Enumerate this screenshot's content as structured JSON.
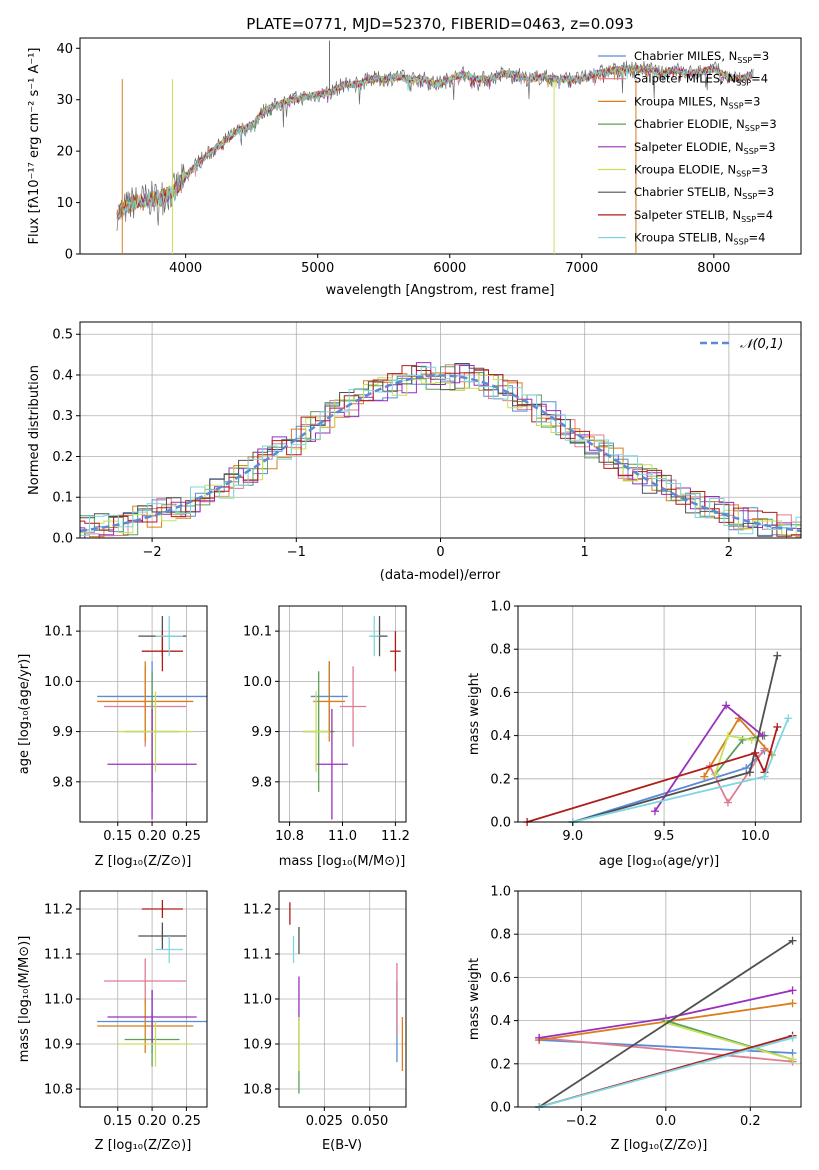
{
  "figure": {
    "title": "PLATE=0771, MJD=52370, FIBERID=0463, z=0.093"
  },
  "chart_data": [
    {
      "id": "spectrum",
      "type": "line",
      "xlabel": "wavelength [Angstrom, rest frame]",
      "ylabel": "Flux [fλ10⁻¹⁷ erg cm⁻² s⁻¹ A⁻¹]",
      "xlim": [
        3200,
        8660
      ],
      "ylim": [
        0,
        42
      ],
      "xticks": [
        4000,
        5000,
        6000,
        7000,
        8000
      ],
      "yticks": [
        0,
        10,
        20,
        30,
        40
      ],
      "legend_position": "top-right",
      "spectrum_envelope": {
        "x": [
          3500,
          3600,
          3700,
          3800,
          3900,
          4000,
          4100,
          4200,
          4300,
          4400,
          4500,
          4600,
          4700,
          4800,
          4900,
          5000,
          5100,
          5200,
          5300,
          5400,
          5500,
          5600,
          5700,
          5800,
          5900,
          6000,
          6100,
          6200,
          6300,
          6400,
          6500,
          6600,
          6700,
          6800,
          6900,
          7000,
          7100,
          7200,
          7300,
          7400,
          7500,
          7600,
          7700,
          7800,
          7900,
          8000,
          8100,
          8200,
          8300
        ],
        "y": [
          8,
          10,
          10.5,
          11,
          12,
          15,
          18,
          20,
          22,
          24,
          25,
          28,
          29,
          30,
          30.5,
          31,
          31.5,
          33,
          33,
          34,
          34,
          34.5,
          34,
          34,
          33,
          34,
          35,
          34,
          34,
          35,
          35,
          34,
          34.5,
          34,
          34,
          34,
          35,
          35.5,
          36,
          36,
          36,
          35,
          36,
          35,
          35.5,
          36,
          34.5,
          34,
          35
        ]
      },
      "series": [
        {
          "name": "Chabrier MILES, N_SSP=3",
          "color": "#5b8bd6"
        },
        {
          "name": "Salpeter MILES, N_SSP=4",
          "color": "#e07b91"
        },
        {
          "name": "Kroupa MILES, N_SSP=3",
          "color": "#d97e1a"
        },
        {
          "name": "Chabrier ELODIE, N_SSP=3",
          "color": "#5c9e5c"
        },
        {
          "name": "Salpeter ELODIE, N_SSP=3",
          "color": "#9a2fbd"
        },
        {
          "name": "Kroupa ELODIE, N_SSP=3",
          "color": "#c6e05a"
        },
        {
          "name": "Chabrier STELIB, N_SSP=3",
          "color": "#505050"
        },
        {
          "name": "Salpeter STELIB, N_SSP=4",
          "color": "#b01c1c"
        },
        {
          "name": "Kroupa STELIB, N_SSP=4",
          "color": "#7ed7e0"
        }
      ],
      "legend_labels": [
        {
          "main": "Chabrier MILES, N",
          "sub": "SSP",
          "val": "=3"
        },
        {
          "main": "Salpeter MILES, N",
          "sub": "SSP",
          "val": "=4"
        },
        {
          "main": "Kroupa MILES, N",
          "sub": "SSP",
          "val": "=3"
        },
        {
          "main": "Chabrier ELODIE, N",
          "sub": "SSP",
          "val": "=3"
        },
        {
          "main": "Salpeter ELODIE, N",
          "sub": "SSP",
          "val": "=3"
        },
        {
          "main": "Kroupa ELODIE, N",
          "sub": "SSP",
          "val": "=3"
        },
        {
          "main": "Chabrier STELIB, N",
          "sub": "SSP",
          "val": "=3"
        },
        {
          "main": "Salpeter STELIB, N",
          "sub": "SSP",
          "val": "=4"
        },
        {
          "main": "Kroupa STELIB, N",
          "sub": "SSP",
          "val": "=4"
        }
      ]
    },
    {
      "id": "residuals",
      "type": "line",
      "xlabel": "(data-model)/error",
      "ylabel": "Normed distribution",
      "xlim": [
        -2.5,
        2.5
      ],
      "ylim": [
        0,
        0.53
      ],
      "xticks": [
        -2,
        -1,
        0,
        1,
        2
      ],
      "xtick_labels": [
        "−2",
        "−1",
        "0",
        "1",
        "2"
      ],
      "yticks": [
        0.0,
        0.1,
        0.2,
        0.3,
        0.4,
        0.5
      ],
      "ytick_labels": [
        "0.0",
        "0.1",
        "0.2",
        "0.3",
        "0.4",
        "0.5"
      ],
      "grid": true,
      "legend_position": "top-right",
      "legend_label": "𝒩(0,1)",
      "normal_color": "#5b8bd6"
    },
    {
      "id": "age-vs-Z",
      "type": "scatter",
      "xlabel": "Z [log₁₀(Z/Z⊙)]",
      "ylabel": "age  [log₁₀(age/yr)]",
      "xlim": [
        0.095,
        0.28
      ],
      "ylim": [
        9.72,
        10.15
      ],
      "xticks": [
        0.15,
        0.2,
        0.25
      ],
      "xtick_labels": [
        "0.15",
        "0.20",
        "0.25"
      ],
      "yticks": [
        9.8,
        9.9,
        10.0,
        10.1
      ],
      "ytick_labels": [
        "9.8",
        "9.9",
        "10.0",
        "10.1"
      ],
      "grid": true,
      "points": [
        {
          "x": 0.2,
          "y": 9.97,
          "xerr": 0.08,
          "yerr": 0.07,
          "color": "#5b8bd6"
        },
        {
          "x": 0.19,
          "y": 9.95,
          "xerr": 0.06,
          "yerr": 0.08,
          "color": "#e07b91"
        },
        {
          "x": 0.19,
          "y": 9.96,
          "xerr": 0.07,
          "yerr": 0.08,
          "color": "#d97e1a"
        },
        {
          "x": 0.2,
          "y": 9.9,
          "xerr": 0.04,
          "yerr": 0.12,
          "color": "#5c9e5c"
        },
        {
          "x": 0.2,
          "y": 9.835,
          "xerr": 0.065,
          "yerr": 0.11,
          "color": "#9a2fbd"
        },
        {
          "x": 0.205,
          "y": 9.9,
          "xerr": 0.055,
          "yerr": 0.08,
          "color": "#c6e05a"
        },
        {
          "x": 0.215,
          "y": 10.09,
          "xerr": 0.035,
          "yerr": 0.04,
          "color": "#505050"
        },
        {
          "x": 0.215,
          "y": 10.06,
          "xerr": 0.03,
          "yerr": 0.04,
          "color": "#b01c1c"
        },
        {
          "x": 0.225,
          "y": 10.09,
          "xerr": 0.02,
          "yerr": 0.04,
          "color": "#7ed7e0"
        }
      ]
    },
    {
      "id": "age-vs-mass",
      "type": "scatter",
      "xlabel": "mass [log₁₀(M/M⊙)]",
      "xlim": [
        10.76,
        11.24
      ],
      "ylim": [
        9.72,
        10.15
      ],
      "xticks": [
        10.8,
        11.0,
        11.2
      ],
      "xtick_labels": [
        "10.8",
        "11.0",
        "11.2"
      ],
      "yticks": [
        9.8,
        9.9,
        10.0,
        10.1
      ],
      "ytick_labels": [
        "9.8",
        "9.9",
        "10.0",
        "10.1"
      ],
      "grid": true,
      "points": [
        {
          "x": 10.95,
          "y": 9.97,
          "xerr": 0.07,
          "yerr": 0.07,
          "color": "#5b8bd6"
        },
        {
          "x": 11.04,
          "y": 9.95,
          "xerr": 0.05,
          "yerr": 0.08,
          "color": "#e07b91"
        },
        {
          "x": 10.95,
          "y": 9.96,
          "xerr": 0.06,
          "yerr": 0.08,
          "color": "#d97e1a"
        },
        {
          "x": 10.91,
          "y": 9.9,
          "xerr": 0.06,
          "yerr": 0.12,
          "color": "#5c9e5c"
        },
        {
          "x": 10.96,
          "y": 9.835,
          "xerr": 0.06,
          "yerr": 0.11,
          "color": "#9a2fbd"
        },
        {
          "x": 10.9,
          "y": 9.9,
          "xerr": 0.05,
          "yerr": 0.08,
          "color": "#c6e05a"
        },
        {
          "x": 11.14,
          "y": 10.09,
          "xerr": 0.03,
          "yerr": 0.04,
          "color": "#505050"
        },
        {
          "x": 11.2,
          "y": 10.06,
          "xerr": 0.02,
          "yerr": 0.04,
          "color": "#b01c1c"
        },
        {
          "x": 11.12,
          "y": 10.09,
          "xerr": 0.02,
          "yerr": 0.04,
          "color": "#7ed7e0"
        }
      ]
    },
    {
      "id": "weight-vs-age",
      "type": "line",
      "xlabel": "age  [log₁₀(age/yr)]",
      "ylabel": "mass weight",
      "xlim": [
        8.7,
        10.25
      ],
      "ylim": [
        0,
        1.0
      ],
      "xticks": [
        9.0,
        9.5,
        10.0
      ],
      "xtick_labels": [
        "9.0",
        "9.5",
        "10.0"
      ],
      "yticks": [
        0.0,
        0.2,
        0.4,
        0.6,
        0.8,
        1.0
      ],
      "ytick_labels": [
        "0.0",
        "0.2",
        "0.4",
        "0.6",
        "0.8",
        "1.0"
      ],
      "grid": true,
      "series": [
        {
          "color": "#5b8bd6",
          "x": [
            9.0,
            9.95,
            10.05
          ],
          "y": [
            0.0,
            0.25,
            0.33
          ]
        },
        {
          "color": "#e07b91",
          "x": [
            9.75,
            9.85,
            10.05
          ],
          "y": [
            0.26,
            0.09,
            0.34
          ]
        },
        {
          "color": "#d97e1a",
          "x": [
            9.72,
            9.91,
            10.09
          ],
          "y": [
            0.21,
            0.48,
            0.31
          ]
        },
        {
          "color": "#5c9e5c",
          "x": [
            9.78,
            9.93,
            10.05
          ],
          "y": [
            0.22,
            0.38,
            0.4
          ]
        },
        {
          "color": "#9a2fbd",
          "x": [
            9.45,
            9.84,
            10.04
          ],
          "y": [
            0.05,
            0.54,
            0.4
          ]
        },
        {
          "color": "#c6e05a",
          "x": [
            9.78,
            9.85,
            9.98
          ],
          "y": [
            0.22,
            0.4,
            0.38
          ]
        },
        {
          "color": "#505050",
          "x": [
            9.0,
            9.97,
            10.12
          ],
          "y": [
            0.0,
            0.23,
            0.77
          ]
        },
        {
          "color": "#b01c1c",
          "x": [
            8.75,
            10.0,
            10.05,
            10.12
          ],
          "y": [
            0.0,
            0.32,
            0.23,
            0.44
          ]
        },
        {
          "color": "#7ed7e0",
          "x": [
            9.0,
            10.05,
            10.18
          ],
          "y": [
            0.0,
            0.21,
            0.48
          ]
        }
      ]
    },
    {
      "id": "mass-vs-Z",
      "type": "scatter",
      "xlabel": "Z [log₁₀(Z/Z⊙)]",
      "ylabel": "mass [log₁₀(M/M⊙)]",
      "xlim": [
        0.095,
        0.28
      ],
      "ylim": [
        10.76,
        11.24
      ],
      "xticks": [
        0.15,
        0.2,
        0.25
      ],
      "xtick_labels": [
        "0.15",
        "0.20",
        "0.25"
      ],
      "yticks": [
        10.8,
        10.9,
        11.0,
        11.1,
        11.2
      ],
      "ytick_labels": [
        "10.8",
        "10.9",
        "11.0",
        "11.1",
        "11.2"
      ],
      "grid": true,
      "points": [
        {
          "x": 0.2,
          "y": 10.95,
          "xerr": 0.08,
          "yerr": 0.07,
          "color": "#5b8bd6"
        },
        {
          "x": 0.19,
          "y": 11.04,
          "xerr": 0.06,
          "yerr": 0.05,
          "color": "#e07b91"
        },
        {
          "x": 0.19,
          "y": 10.94,
          "xerr": 0.07,
          "yerr": 0.06,
          "color": "#d97e1a"
        },
        {
          "x": 0.2,
          "y": 10.91,
          "xerr": 0.04,
          "yerr": 0.06,
          "color": "#5c9e5c"
        },
        {
          "x": 0.2,
          "y": 10.96,
          "xerr": 0.065,
          "yerr": 0.06,
          "color": "#9a2fbd"
        },
        {
          "x": 0.205,
          "y": 10.9,
          "xerr": 0.055,
          "yerr": 0.05,
          "color": "#c6e05a"
        },
        {
          "x": 0.215,
          "y": 11.14,
          "xerr": 0.035,
          "yerr": 0.03,
          "color": "#505050"
        },
        {
          "x": 0.215,
          "y": 11.2,
          "xerr": 0.03,
          "yerr": 0.02,
          "color": "#b01c1c"
        },
        {
          "x": 0.225,
          "y": 11.11,
          "xerr": 0.02,
          "yerr": 0.03,
          "color": "#7ed7e0"
        }
      ]
    },
    {
      "id": "mass-vs-EBV",
      "type": "scatter",
      "xlabel": "E(B-V)",
      "xlim": [
        0.0,
        0.07
      ],
      "ylim": [
        10.76,
        11.24
      ],
      "xticks": [
        0.025,
        0.05
      ],
      "xtick_labels": [
        "0.025",
        "0.050"
      ],
      "yticks": [
        10.8,
        10.9,
        11.0,
        11.1,
        11.2
      ],
      "ytick_labels": [
        "10.8",
        "10.9",
        "11.0",
        "11.1",
        "11.2"
      ],
      "grid": true,
      "points": [
        {
          "x": 0.065,
          "y": 10.95,
          "xerr": 0.0,
          "yerr": 0.09,
          "color": "#5b8bd6"
        },
        {
          "x": 0.065,
          "y": 11.0,
          "xerr": 0.0,
          "yerr": 0.08,
          "color": "#e07b91"
        },
        {
          "x": 0.068,
          "y": 10.9,
          "xerr": 0.0,
          "yerr": 0.06,
          "color": "#d97e1a"
        },
        {
          "x": 0.011,
          "y": 10.87,
          "xerr": 0.0,
          "yerr": 0.08,
          "color": "#5c9e5c"
        },
        {
          "x": 0.011,
          "y": 11.0,
          "xerr": 0.0,
          "yerr": 0.05,
          "color": "#9a2fbd"
        },
        {
          "x": 0.011,
          "y": 10.9,
          "xerr": 0.0,
          "yerr": 0.06,
          "color": "#c6e05a"
        },
        {
          "x": 0.011,
          "y": 11.13,
          "xerr": 0.0,
          "yerr": 0.03,
          "color": "#505050"
        },
        {
          "x": 0.006,
          "y": 11.19,
          "xerr": 0.0,
          "yerr": 0.025,
          "color": "#b01c1c"
        },
        {
          "x": 0.008,
          "y": 11.11,
          "xerr": 0.0,
          "yerr": 0.03,
          "color": "#7ed7e0"
        }
      ]
    },
    {
      "id": "weight-vs-Z",
      "type": "line",
      "xlabel": "Z [log₁₀(Z/Z⊙)]",
      "ylabel": "mass weight",
      "xlim": [
        -0.35,
        0.32
      ],
      "ylim": [
        0,
        1.0
      ],
      "xticks": [
        -0.2,
        0.0,
        0.2
      ],
      "xtick_labels": [
        "−0.2",
        "0.0",
        "0.2"
      ],
      "yticks": [
        0.0,
        0.2,
        0.4,
        0.6,
        0.8,
        1.0
      ],
      "ytick_labels": [
        "0.0",
        "0.2",
        "0.4",
        "0.6",
        "0.8",
        "1.0"
      ],
      "grid": true,
      "series": [
        {
          "color": "#5b8bd6",
          "x": [
            -0.3,
            0.3
          ],
          "y": [
            0.31,
            0.25
          ]
        },
        {
          "color": "#e07b91",
          "x": [
            -0.3,
            0.3
          ],
          "y": [
            0.32,
            0.21
          ]
        },
        {
          "color": "#d97e1a",
          "x": [
            -0.3,
            0.3
          ],
          "y": [
            0.31,
            0.48
          ]
        },
        {
          "color": "#5c9e5c",
          "x": [
            0.0,
            0.3
          ],
          "y": [
            0.4,
            0.22
          ]
        },
        {
          "color": "#9a2fbd",
          "x": [
            -0.3,
            0.0,
            0.3
          ],
          "y": [
            0.32,
            0.41,
            0.54
          ]
        },
        {
          "color": "#c6e05a",
          "x": [
            0.0,
            0.3
          ],
          "y": [
            0.39,
            0.22
          ]
        },
        {
          "color": "#505050",
          "x": [
            -0.3,
            0.3
          ],
          "y": [
            0.0,
            0.77
          ]
        },
        {
          "color": "#b01c1c",
          "x": [
            -0.3,
            0.3
          ],
          "y": [
            0.0,
            0.33
          ]
        },
        {
          "color": "#7ed7e0",
          "x": [
            -0.3,
            0.3
          ],
          "y": [
            0.0,
            0.32
          ]
        }
      ]
    }
  ]
}
